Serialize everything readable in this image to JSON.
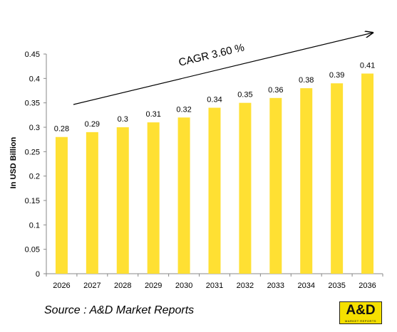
{
  "chart_data": {
    "type": "bar",
    "categories": [
      "2026",
      "2027",
      "2028",
      "2029",
      "2030",
      "2031",
      "2032",
      "2033",
      "2034",
      "2035",
      "2036"
    ],
    "values": [
      0.28,
      0.29,
      0.3,
      0.31,
      0.32,
      0.34,
      0.35,
      0.36,
      0.38,
      0.39,
      0.41
    ],
    "data_labels": [
      "0.28",
      "0.29",
      "0.3",
      "0.31",
      "0.32",
      "0.34",
      "0.35",
      "0.36",
      "0.38",
      "0.39",
      "0.41"
    ],
    "ylabel": "In USD Billion",
    "ylim": [
      0,
      0.45
    ],
    "yticks": [
      "0",
      "0.05",
      "0.1",
      "0.15",
      "0.2",
      "0.25",
      "0.3",
      "0.35",
      "0.4",
      "0.45"
    ],
    "grid": false,
    "legend": "none",
    "bar_color": "#FFE033",
    "annotation": "CAGR 3.60 %"
  },
  "footer": {
    "source": "Source : A&D Market Reports",
    "logo_text": "A&D",
    "logo_sub": "MARKET REPORTS"
  }
}
